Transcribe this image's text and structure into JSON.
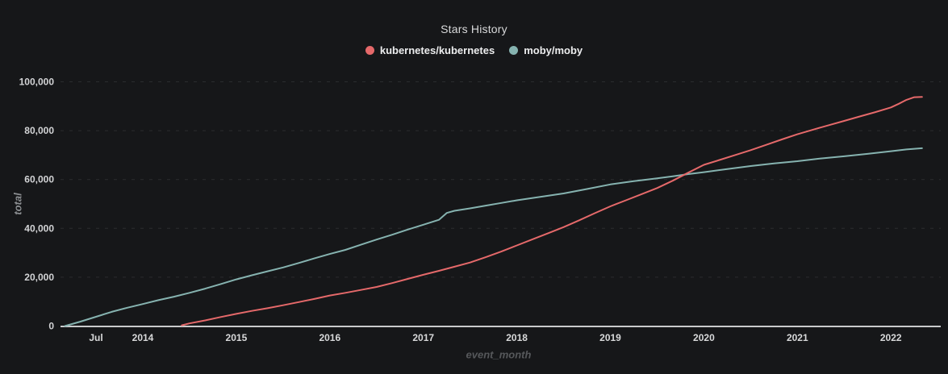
{
  "title": "Stars History",
  "colors": {
    "background": "#161719",
    "title_text": "#d8d9da",
    "legend_text": "#ecedee",
    "tick_text": "#d5d6d8",
    "y_axis_title_text": "#8b8e91",
    "x_axis_title_text": "#56585b",
    "grid_line": "#2b2d2f",
    "axis_line": "#c9cacb",
    "kubernetes_line": "#e5696a",
    "moby_line": "#86b3b0"
  },
  "legend": [
    {
      "label": "kubernetes/kubernetes",
      "color": "#e5696a"
    },
    {
      "label": "moby/moby",
      "color": "#86b3b0"
    }
  ],
  "chart_data": {
    "type": "line",
    "title": "Stars History",
    "xlabel": "event_month",
    "ylabel": "total",
    "ylim": [
      0,
      100000
    ],
    "grid": "horizontal-dashed",
    "legend_position": "top-center",
    "y_ticks": [
      {
        "value": 0,
        "label": "0"
      },
      {
        "value": 20000,
        "label": "20,000"
      },
      {
        "value": 40000,
        "label": "40,000"
      },
      {
        "value": 60000,
        "label": "60,000"
      },
      {
        "value": 80000,
        "label": "80,000"
      },
      {
        "value": 100000,
        "label": "100,000"
      }
    ],
    "x_ticks": [
      {
        "month": "2013-07",
        "label": "Jul"
      },
      {
        "month": "2014-01",
        "label": "2014"
      },
      {
        "month": "2015-01",
        "label": "2015"
      },
      {
        "month": "2016-01",
        "label": "2016"
      },
      {
        "month": "2017-01",
        "label": "2017"
      },
      {
        "month": "2018-01",
        "label": "2018"
      },
      {
        "month": "2019-01",
        "label": "2019"
      },
      {
        "month": "2020-01",
        "label": "2020"
      },
      {
        "month": "2021-01",
        "label": "2021"
      },
      {
        "month": "2022-01",
        "label": "2022"
      }
    ],
    "series": [
      {
        "name": "moby/moby",
        "color": "#86b3b0",
        "points": [
          [
            "2013-03",
            0
          ],
          [
            "2013-05",
            1800
          ],
          [
            "2013-07",
            3800
          ],
          [
            "2013-09",
            5800
          ],
          [
            "2013-11",
            7500
          ],
          [
            "2014-01",
            9000
          ],
          [
            "2014-03",
            10600
          ],
          [
            "2014-05",
            12000
          ],
          [
            "2014-07",
            13600
          ],
          [
            "2014-09",
            15300
          ],
          [
            "2014-11",
            17200
          ],
          [
            "2015-01",
            19100
          ],
          [
            "2015-03",
            20800
          ],
          [
            "2015-05",
            22400
          ],
          [
            "2015-07",
            24000
          ],
          [
            "2015-09",
            25800
          ],
          [
            "2015-11",
            27700
          ],
          [
            "2016-01",
            29500
          ],
          [
            "2016-03",
            31200
          ],
          [
            "2016-05",
            33300
          ],
          [
            "2016-07",
            35400
          ],
          [
            "2016-09",
            37400
          ],
          [
            "2016-11",
            39500
          ],
          [
            "2017-01",
            41500
          ],
          [
            "2017-03",
            43500
          ],
          [
            "2017-04",
            46300
          ],
          [
            "2017-05",
            47200
          ],
          [
            "2017-07",
            48200
          ],
          [
            "2017-09",
            49300
          ],
          [
            "2017-11",
            50400
          ],
          [
            "2018-01",
            51500
          ],
          [
            "2018-04",
            52900
          ],
          [
            "2018-07",
            54300
          ],
          [
            "2018-10",
            56100
          ],
          [
            "2019-01",
            58000
          ],
          [
            "2019-04",
            59300
          ],
          [
            "2019-07",
            60500
          ],
          [
            "2019-09",
            61300
          ],
          [
            "2019-11",
            62200
          ],
          [
            "2020-01",
            63000
          ],
          [
            "2020-04",
            64300
          ],
          [
            "2020-07",
            65500
          ],
          [
            "2020-10",
            66600
          ],
          [
            "2021-01",
            67500
          ],
          [
            "2021-04",
            68600
          ],
          [
            "2021-07",
            69500
          ],
          [
            "2021-10",
            70500
          ],
          [
            "2022-01",
            71600
          ],
          [
            "2022-03",
            72300
          ],
          [
            "2022-05",
            72800
          ]
        ]
      },
      {
        "name": "kubernetes/kubernetes",
        "color": "#e5696a",
        "points": [
          [
            "2014-06",
            300
          ],
          [
            "2014-07",
            1100
          ],
          [
            "2014-09",
            2300
          ],
          [
            "2014-11",
            3700
          ],
          [
            "2015-01",
            5000
          ],
          [
            "2015-03",
            6200
          ],
          [
            "2015-05",
            7300
          ],
          [
            "2015-07",
            8500
          ],
          [
            "2015-09",
            9800
          ],
          [
            "2015-11",
            11100
          ],
          [
            "2016-01",
            12500
          ],
          [
            "2016-03",
            13600
          ],
          [
            "2016-05",
            14800
          ],
          [
            "2016-07",
            16000
          ],
          [
            "2016-09",
            17600
          ],
          [
            "2016-11",
            19300
          ],
          [
            "2017-01",
            21000
          ],
          [
            "2017-03",
            22600
          ],
          [
            "2017-05",
            24300
          ],
          [
            "2017-07",
            26000
          ],
          [
            "2017-09",
            28200
          ],
          [
            "2017-11",
            30500
          ],
          [
            "2018-01",
            33000
          ],
          [
            "2018-03",
            35500
          ],
          [
            "2018-05",
            38000
          ],
          [
            "2018-07",
            40500
          ],
          [
            "2018-09",
            43300
          ],
          [
            "2018-11",
            46200
          ],
          [
            "2019-01",
            49000
          ],
          [
            "2019-03",
            51500
          ],
          [
            "2019-05",
            54000
          ],
          [
            "2019-07",
            56500
          ],
          [
            "2019-09",
            59500
          ],
          [
            "2019-11",
            62800
          ],
          [
            "2020-01",
            66000
          ],
          [
            "2020-03",
            68000
          ],
          [
            "2020-05",
            70000
          ],
          [
            "2020-07",
            72000
          ],
          [
            "2020-09",
            74200
          ],
          [
            "2020-11",
            76400
          ],
          [
            "2021-01",
            78500
          ],
          [
            "2021-03",
            80400
          ],
          [
            "2021-05",
            82200
          ],
          [
            "2021-07",
            84000
          ],
          [
            "2021-09",
            85800
          ],
          [
            "2021-11",
            87600
          ],
          [
            "2022-01",
            89500
          ],
          [
            "2022-02",
            91000
          ],
          [
            "2022-03",
            92600
          ],
          [
            "2022-04",
            93700
          ],
          [
            "2022-05",
            93800
          ]
        ]
      }
    ]
  }
}
